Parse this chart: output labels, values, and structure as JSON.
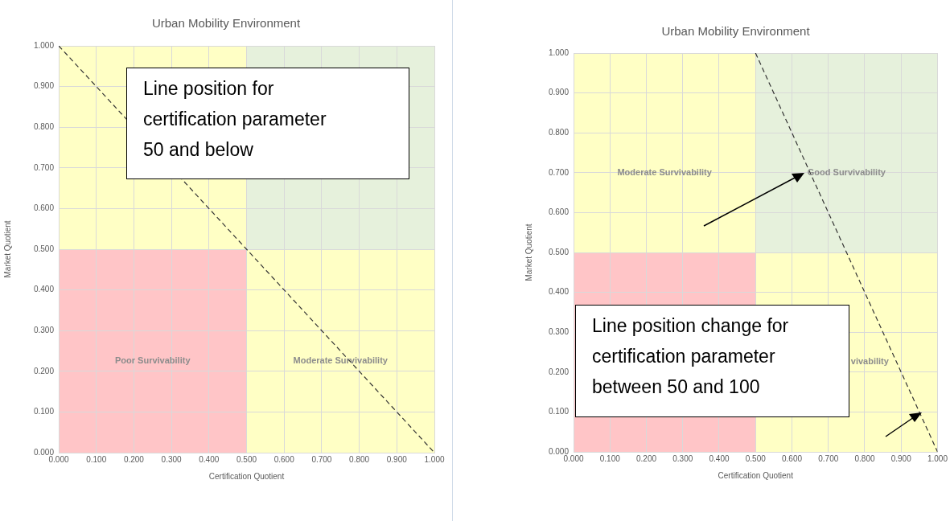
{
  "chart_data": [
    {
      "type": "line",
      "title": "Urban Mobility Environment",
      "xlabel": "Certification Quotient",
      "ylabel": "Market Quotient",
      "series": [
        {
          "color": "#333333",
          "x": [
            0,
            1
          ],
          "values": [
            1,
            0
          ],
          "line_style": "dashed",
          "marker": "none"
        }
      ],
      "xlim": [
        0,
        1
      ],
      "ylim": [
        0,
        1
      ],
      "xticks": [
        {
          "value": 0,
          "label": "0.000"
        },
        {
          "value": 0.1,
          "label": "0.100"
        },
        {
          "value": 0.2,
          "label": "0.200"
        },
        {
          "value": 0.3,
          "label": "0.300"
        },
        {
          "value": 0.4,
          "label": "0.400"
        },
        {
          "value": 0.5,
          "label": "0.500"
        },
        {
          "value": 0.6,
          "label": "0.600"
        },
        {
          "value": 0.7,
          "label": "0.700"
        },
        {
          "value": 0.8,
          "label": "0.800"
        },
        {
          "value": 0.9,
          "label": "0.900"
        },
        {
          "value": 1,
          "label": "1.000"
        }
      ],
      "yticks": [
        {
          "value": 0,
          "label": "0.000"
        },
        {
          "value": 0.1,
          "label": "0.100"
        },
        {
          "value": 0.2,
          "label": "0.200"
        },
        {
          "value": 0.3,
          "label": "0.300"
        },
        {
          "value": 0.4,
          "label": "0.400"
        },
        {
          "value": 0.5,
          "label": "0.500"
        },
        {
          "value": 0.6,
          "label": "0.600"
        },
        {
          "value": 0.7,
          "label": "0.700"
        },
        {
          "value": 0.8,
          "label": "0.800"
        },
        {
          "value": 0.9,
          "label": "0.900"
        },
        {
          "value": 1,
          "label": "1.000"
        }
      ],
      "grid": true,
      "legend": false,
      "annotations": [
        "Poor Survivability",
        "Moderate Survivability",
        "Line position for certification parameter 50 and below"
      ]
    },
    {
      "type": "line",
      "title": "Urban Mobility Environment",
      "xlabel": "Certification Quotient",
      "ylabel": "Market Quotient",
      "series": [
        {
          "color": "#333333",
          "x": [
            0.5,
            1
          ],
          "values": [
            1,
            0
          ],
          "line_style": "dashed",
          "marker": "none"
        }
      ],
      "xlim": [
        0,
        1
      ],
      "ylim": [
        0,
        1
      ],
      "xticks": [
        {
          "value": 0,
          "label": "0.000"
        },
        {
          "value": 0.1,
          "label": "0.100"
        },
        {
          "value": 0.2,
          "label": "0.200"
        },
        {
          "value": 0.3,
          "label": "0.300"
        },
        {
          "value": 0.4,
          "label": "0.400"
        },
        {
          "value": 0.5,
          "label": "0.500"
        },
        {
          "value": 0.6,
          "label": "0.600"
        },
        {
          "value": 0.7,
          "label": "0.700"
        },
        {
          "value": 0.8,
          "label": "0.800"
        },
        {
          "value": 0.9,
          "label": "0.900"
        },
        {
          "value": 1,
          "label": "1.000"
        }
      ],
      "yticks": [
        {
          "value": 0,
          "label": "0.000"
        },
        {
          "value": 0.1,
          "label": "0.100"
        },
        {
          "value": 0.2,
          "label": "0.200"
        },
        {
          "value": 0.3,
          "label": "0.300"
        },
        {
          "value": 0.4,
          "label": "0.400"
        },
        {
          "value": 0.5,
          "label": "0.500"
        },
        {
          "value": 0.6,
          "label": "0.600"
        },
        {
          "value": 0.7,
          "label": "0.700"
        },
        {
          "value": 0.8,
          "label": "0.800"
        },
        {
          "value": 0.9,
          "label": "0.900"
        },
        {
          "value": 1,
          "label": "1.000"
        }
      ],
      "grid": true,
      "legend": false,
      "annotations": [
        "Moderate Survivability",
        "Good Survivability",
        "vivability",
        "Line position change for certification parameter between 50 and 100"
      ]
    }
  ]
}
